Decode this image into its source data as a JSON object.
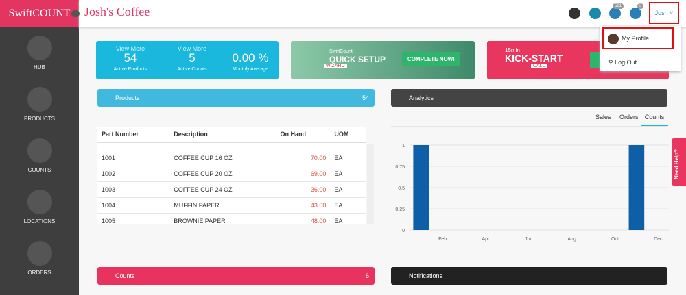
{
  "sidebar": {
    "brand": "SwiftCOUNT",
    "nav": [
      "HUB",
      "PRODUCTS",
      "COUNTS",
      "LOCATIONS",
      "ORDERS"
    ]
  },
  "header": {
    "title": "Josh's Coffee",
    "badges": [
      "581",
      "3"
    ],
    "user": "Josh"
  },
  "dropdown": [
    "My Profile",
    "Log Out"
  ],
  "stats": [
    {
      "link": "View More",
      "value": "54",
      "label": "Active Products"
    },
    {
      "link": "View More",
      "value": "5",
      "label": "Active Counts"
    },
    {
      "value": "0.00 %",
      "label": "Monthly Average"
    }
  ],
  "banners": {
    "setup_top": "SwiftCount",
    "setup_title": "QUICK SETUP",
    "setup_tag": "WIZARD",
    "setup_button": "COMPLETE NOW!",
    "kick_top": "15min",
    "kick_title": "KICK-START",
    "kick_tag": "CALL"
  },
  "products": {
    "title": "Products",
    "count": "54",
    "columns": [
      "Part Number",
      "Description",
      "On Hand",
      "UOM"
    ],
    "rows": [
      [
        "1001",
        "COFFEE CUP 16 OZ",
        "70.00",
        "EA"
      ],
      [
        "1002",
        "COFFEE CUP 20 OZ",
        "69.00",
        "EA"
      ],
      [
        "1003",
        "COFFEE CUP 24 OZ",
        "36.00",
        "EA"
      ],
      [
        "1004",
        "MUFFIN PAPER",
        "43.00",
        "EA"
      ],
      [
        "1005",
        "BROWNIE PAPER",
        "48.00",
        "EA"
      ]
    ]
  },
  "analytics": {
    "title": "Analytics",
    "tabs": [
      "Sales",
      "Orders",
      "Counts"
    ]
  },
  "chart_data": {
    "type": "bar",
    "categories": [
      null,
      "Feb",
      null,
      "Apr",
      null,
      "Jun",
      null,
      "Aug",
      null,
      "Oct",
      null,
      "Dec"
    ],
    "values": [
      1,
      0,
      0,
      0,
      0,
      0,
      0,
      0,
      0,
      0,
      1,
      0
    ],
    "color": "#0e5fa8",
    "ylim": [
      0,
      1
    ],
    "yticks": [
      0,
      0.25,
      0.5,
      0.75,
      1
    ],
    "grid": true
  },
  "counts_panel": {
    "title": "Counts",
    "count": "6"
  },
  "notifications": {
    "title": "Notifications"
  },
  "help": "Need Help?"
}
